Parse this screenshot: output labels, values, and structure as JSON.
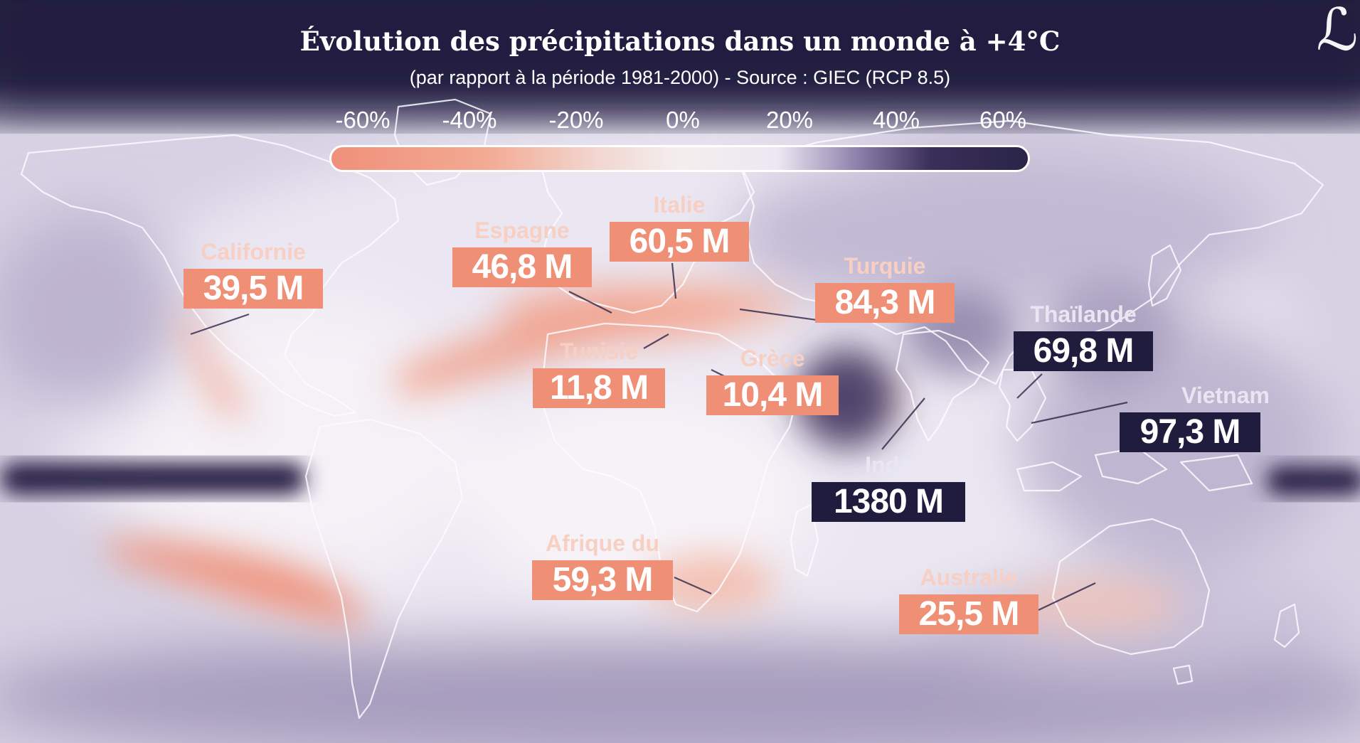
{
  "title": "Évolution des précipitations dans un monde à +4°C",
  "subtitle": "(par rapport à la période 1981-2000)  -  Source : GIEC (RCP 8.5)",
  "legend": {
    "ticks": [
      "-60%",
      "-40%",
      "-20%",
      "0%",
      "20%",
      "40%",
      "60%"
    ]
  },
  "callouts": [
    {
      "name": "Californie",
      "value": "39,5 M",
      "kind": "neg"
    },
    {
      "name": "Espagne",
      "value": "46,8 M",
      "kind": "neg"
    },
    {
      "name": "Italie",
      "value": "60,5 M",
      "kind": "neg"
    },
    {
      "name": "Turquie",
      "value": "84,3 M",
      "kind": "neg"
    },
    {
      "name": "Tunisie",
      "value": "11,8 M",
      "kind": "neg"
    },
    {
      "name": "Grèce",
      "value": "10,4 M",
      "kind": "neg"
    },
    {
      "name": "Thaïlande",
      "value": "69,8 M",
      "kind": "pos"
    },
    {
      "name": "Vietnam",
      "value": "97,3 M",
      "kind": "pos"
    },
    {
      "name": "Inde",
      "value": "1380 M",
      "kind": "pos"
    },
    {
      "name": "Afrique du",
      "value": "59,3 M",
      "kind": "neg"
    },
    {
      "name": "Australie",
      "value": "25,5 M",
      "kind": "neg"
    }
  ],
  "colors": {
    "decrease": "#ef8f76",
    "increase": "#201c3e",
    "neutral": "#f1eef6"
  }
}
